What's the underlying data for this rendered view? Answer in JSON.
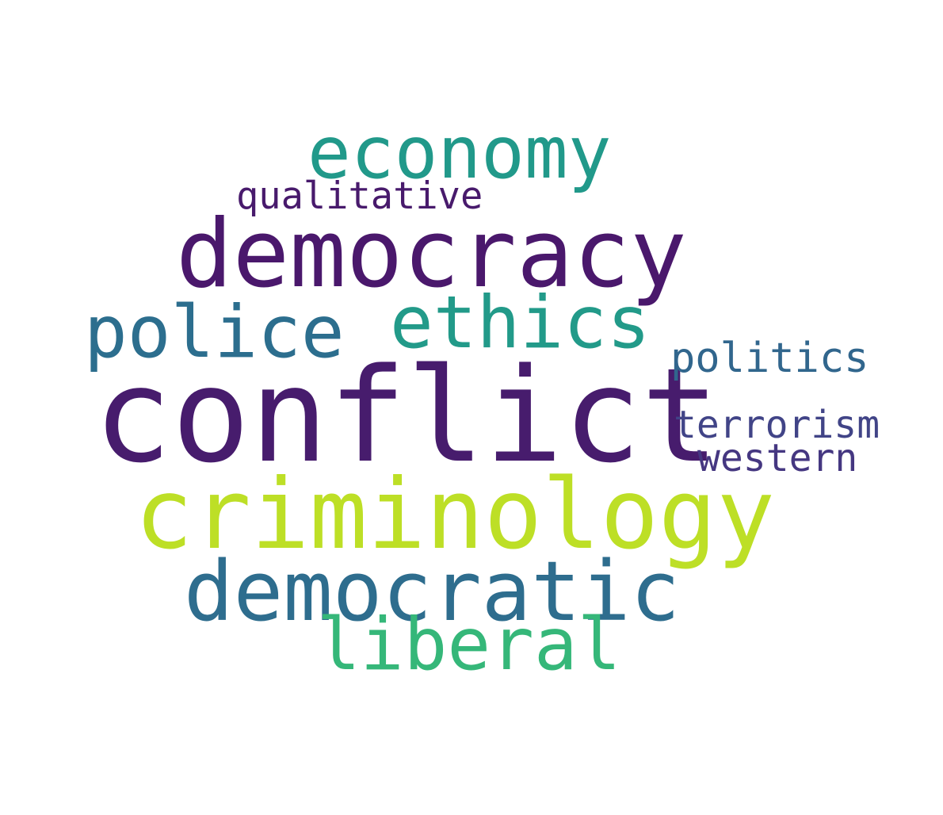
{
  "words": {
    "conflict": {
      "text": "conflict",
      "color": "#471c6d"
    },
    "criminology": {
      "text": "criminology",
      "color": "#bddf26"
    },
    "democracy": {
      "text": "democracy",
      "color": "#4a186c"
    },
    "democratic": {
      "text": "democratic",
      "color": "#2e6d8e"
    },
    "economy": {
      "text": "economy",
      "color": "#21998a"
    },
    "ethics": {
      "text": "ethics",
      "color": "#229a89"
    },
    "police": {
      "text": "police",
      "color": "#2c6e8e"
    },
    "liberal": {
      "text": "liberal",
      "color": "#35b779"
    },
    "politics": {
      "text": "politics",
      "color": "#31668d"
    },
    "terrorism": {
      "text": "terrorism",
      "color": "#414487"
    },
    "western": {
      "text": "western",
      "color": "#453781"
    },
    "qualitative": {
      "text": "qualitative",
      "color": "#481a6c"
    }
  }
}
